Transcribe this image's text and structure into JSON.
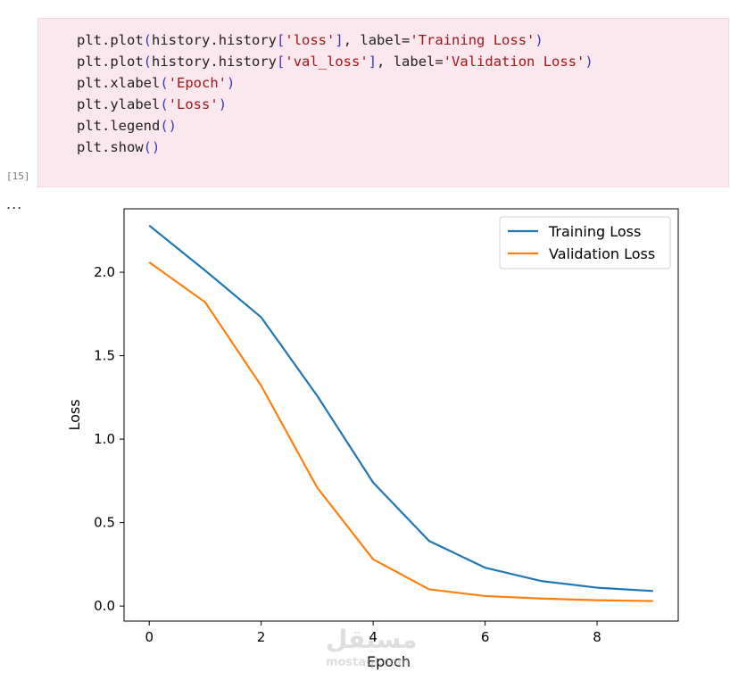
{
  "cell": {
    "execution_count": "[15]",
    "output_prompt": "...",
    "code_lines": [
      [
        {
          "t": "plt",
          "c": "plain"
        },
        {
          "t": ".",
          "c": "plain"
        },
        {
          "t": "plot",
          "c": "plain"
        },
        {
          "t": "(",
          "c": "punc"
        },
        {
          "t": "history",
          "c": "plain"
        },
        {
          "t": ".",
          "c": "plain"
        },
        {
          "t": "history",
          "c": "plain"
        },
        {
          "t": "[",
          "c": "punc"
        },
        {
          "t": "'loss'",
          "c": "str"
        },
        {
          "t": "]",
          "c": "punc"
        },
        {
          "t": ", ",
          "c": "plain"
        },
        {
          "t": "label",
          "c": "plain"
        },
        {
          "t": "=",
          "c": "plain"
        },
        {
          "t": "'Training Loss'",
          "c": "str"
        },
        {
          "t": ")",
          "c": "punc"
        }
      ],
      [
        {
          "t": "plt",
          "c": "plain"
        },
        {
          "t": ".",
          "c": "plain"
        },
        {
          "t": "plot",
          "c": "plain"
        },
        {
          "t": "(",
          "c": "punc"
        },
        {
          "t": "history",
          "c": "plain"
        },
        {
          "t": ".",
          "c": "plain"
        },
        {
          "t": "history",
          "c": "plain"
        },
        {
          "t": "[",
          "c": "punc"
        },
        {
          "t": "'val_loss'",
          "c": "str"
        },
        {
          "t": "]",
          "c": "punc"
        },
        {
          "t": ", ",
          "c": "plain"
        },
        {
          "t": "label",
          "c": "plain"
        },
        {
          "t": "=",
          "c": "plain"
        },
        {
          "t": "'Validation Loss'",
          "c": "str"
        },
        {
          "t": ")",
          "c": "punc"
        }
      ],
      [
        {
          "t": "plt",
          "c": "plain"
        },
        {
          "t": ".",
          "c": "plain"
        },
        {
          "t": "xlabel",
          "c": "plain"
        },
        {
          "t": "(",
          "c": "punc"
        },
        {
          "t": "'Epoch'",
          "c": "str"
        },
        {
          "t": ")",
          "c": "punc"
        }
      ],
      [
        {
          "t": "plt",
          "c": "plain"
        },
        {
          "t": ".",
          "c": "plain"
        },
        {
          "t": "ylabel",
          "c": "plain"
        },
        {
          "t": "(",
          "c": "punc"
        },
        {
          "t": "'Loss'",
          "c": "str"
        },
        {
          "t": ")",
          "c": "punc"
        }
      ],
      [
        {
          "t": "plt",
          "c": "plain"
        },
        {
          "t": ".",
          "c": "plain"
        },
        {
          "t": "legend",
          "c": "plain"
        },
        {
          "t": "()",
          "c": "punc"
        }
      ],
      [
        {
          "t": "plt",
          "c": "plain"
        },
        {
          "t": ".",
          "c": "plain"
        },
        {
          "t": "show",
          "c": "plain"
        },
        {
          "t": "()",
          "c": "punc"
        }
      ]
    ]
  },
  "chart_data": {
    "type": "line",
    "x": [
      0,
      1,
      2,
      3,
      4,
      5,
      6,
      7,
      8,
      9
    ],
    "series": [
      {
        "name": "Training Loss",
        "color": "#1f77b4",
        "values": [
          2.28,
          2.01,
          1.73,
          1.26,
          0.74,
          0.39,
          0.23,
          0.15,
          0.11,
          0.09
        ]
      },
      {
        "name": "Validation Loss",
        "color": "#ff7f0e",
        "values": [
          2.06,
          1.82,
          1.32,
          0.71,
          0.28,
          0.1,
          0.06,
          0.045,
          0.035,
          0.03
        ]
      }
    ],
    "xlabel": "Epoch",
    "ylabel": "Loss",
    "xlim": [
      -0.45,
      9.45
    ],
    "ylim": [
      -0.09,
      2.38
    ],
    "xticks": [
      0,
      2,
      4,
      6,
      8
    ],
    "yticks": [
      0.0,
      0.5,
      1.0,
      1.5,
      2.0
    ],
    "ytick_labels": [
      "0.0",
      "0.5",
      "1.0",
      "1.5",
      "2.0"
    ],
    "grid": false,
    "legend_position": "upper right"
  },
  "watermark": {
    "glyph_text": "مستقل",
    "text": "mostaql.com"
  }
}
